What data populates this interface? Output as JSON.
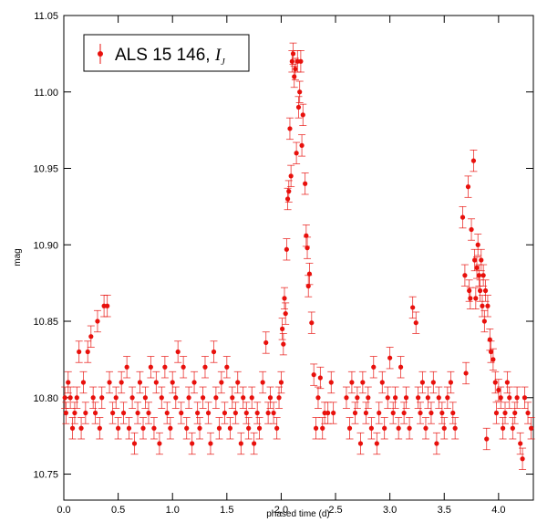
{
  "chart_data": {
    "type": "scatter",
    "xlabel": "phased time (d)",
    "ylabel": "mag",
    "xlim": [
      0,
      4.32
    ],
    "ylim": [
      10.733,
      11.05
    ],
    "xticks": [
      {
        "value": 0,
        "label": "0.0"
      },
      0.5,
      {
        "value": 1,
        "label": "1.0"
      },
      1.5,
      {
        "value": 2,
        "label": "2.0"
      },
      2.5,
      {
        "value": 3,
        "label": "3.0"
      },
      3.5,
      {
        "value": 4,
        "label": "4.0"
      }
    ],
    "yticks": [
      10.75,
      {
        "value": 10.8,
        "label": "10.80"
      },
      10.85,
      {
        "value": 10.9,
        "label": "10.90"
      },
      10.95,
      {
        "value": 11,
        "label": "11.00"
      },
      11.05
    ],
    "legend_position": "upper left",
    "series": [
      {
        "name": "ALS 15 146, ",
        "name_symbol": "I",
        "name_subscript": "J",
        "color": "#e8100c",
        "error": 0.007,
        "x": [
          0.01,
          0.02,
          0.04,
          0.06,
          0.08,
          0.1,
          0.12,
          0.14,
          0.16,
          0.18,
          0.2,
          0.22,
          0.25,
          0.27,
          0.29,
          0.31,
          0.33,
          0.35,
          0.37,
          0.4,
          0.42,
          0.45,
          0.48,
          0.5,
          0.53,
          0.55,
          0.58,
          0.6,
          0.63,
          0.65,
          0.68,
          0.7,
          0.73,
          0.75,
          0.78,
          0.8,
          0.83,
          0.85,
          0.88,
          0.9,
          0.93,
          0.95,
          0.98,
          1.0,
          1.03,
          1.05,
          1.08,
          1.1,
          1.13,
          1.15,
          1.18,
          1.2,
          1.23,
          1.25,
          1.28,
          1.3,
          1.33,
          1.35,
          1.38,
          1.4,
          1.43,
          1.45,
          1.48,
          1.5,
          1.53,
          1.55,
          1.58,
          1.6,
          1.63,
          1.65,
          1.68,
          1.7,
          1.73,
          1.75,
          1.78,
          1.8,
          1.83,
          1.86,
          1.88,
          1.9,
          1.93,
          1.96,
          1.98,
          2.0,
          2.01,
          2.02,
          2.03,
          2.04,
          2.05,
          2.06,
          2.07,
          2.08,
          2.09,
          2.1,
          2.11,
          2.12,
          2.13,
          2.14,
          2.15,
          2.16,
          2.17,
          2.18,
          2.19,
          2.2,
          2.22,
          2.23,
          2.24,
          2.25,
          2.26,
          2.28,
          2.3,
          2.32,
          2.34,
          2.36,
          2.38,
          2.4,
          2.43,
          2.46,
          2.48,
          2.6,
          2.63,
          2.65,
          2.68,
          2.7,
          2.73,
          2.75,
          2.78,
          2.8,
          2.83,
          2.85,
          2.88,
          2.9,
          2.93,
          2.95,
          2.98,
          3.0,
          3.03,
          3.05,
          3.08,
          3.1,
          3.13,
          3.15,
          3.18,
          3.21,
          3.24,
          3.26,
          3.28,
          3.3,
          3.33,
          3.35,
          3.38,
          3.4,
          3.43,
          3.45,
          3.48,
          3.5,
          3.53,
          3.56,
          3.58,
          3.6,
          3.67,
          3.69,
          3.7,
          3.72,
          3.73,
          3.74,
          3.75,
          3.77,
          3.78,
          3.79,
          3.8,
          3.81,
          3.82,
          3.83,
          3.84,
          3.85,
          3.86,
          3.87,
          3.88,
          3.89,
          3.9,
          3.92,
          3.93,
          3.95,
          3.97,
          3.98,
          4.0,
          4.02,
          4.04,
          4.06,
          4.08,
          4.1,
          4.13,
          4.15,
          4.17,
          4.2,
          4.22,
          4.24,
          4.27,
          4.3
        ],
        "values": [
          10.8,
          10.79,
          10.81,
          10.8,
          10.78,
          10.79,
          10.8,
          10.83,
          10.78,
          10.81,
          10.79,
          10.83,
          10.84,
          10.8,
          10.79,
          10.85,
          10.78,
          10.8,
          10.86,
          10.86,
          10.81,
          10.79,
          10.8,
          10.78,
          10.81,
          10.79,
          10.82,
          10.78,
          10.8,
          10.77,
          10.79,
          10.81,
          10.78,
          10.8,
          10.79,
          10.82,
          10.78,
          10.81,
          10.77,
          10.8,
          10.82,
          10.79,
          10.78,
          10.81,
          10.8,
          10.83,
          10.79,
          10.82,
          10.78,
          10.8,
          10.77,
          10.81,
          10.79,
          10.78,
          10.8,
          10.82,
          10.79,
          10.77,
          10.83,
          10.8,
          10.78,
          10.81,
          10.79,
          10.82,
          10.78,
          10.8,
          10.79,
          10.81,
          10.77,
          10.8,
          10.79,
          10.78,
          10.8,
          10.77,
          10.79,
          10.78,
          10.81,
          10.836,
          10.79,
          10.8,
          10.79,
          10.78,
          10.8,
          10.81,
          10.845,
          10.835,
          10.865,
          10.855,
          10.897,
          10.93,
          10.935,
          10.976,
          10.945,
          11.02,
          11.025,
          11.01,
          11.015,
          10.96,
          11.02,
          10.99,
          11.0,
          11.02,
          10.965,
          10.985,
          10.94,
          10.906,
          10.898,
          10.873,
          10.881,
          10.849,
          10.815,
          10.78,
          10.8,
          10.813,
          10.78,
          10.79,
          10.79,
          10.81,
          10.79,
          10.8,
          10.78,
          10.81,
          10.79,
          10.8,
          10.77,
          10.81,
          10.79,
          10.8,
          10.78,
          10.82,
          10.77,
          10.79,
          10.81,
          10.78,
          10.8,
          10.826,
          10.79,
          10.8,
          10.78,
          10.82,
          10.79,
          10.8,
          10.78,
          10.859,
          10.849,
          10.8,
          10.79,
          10.81,
          10.78,
          10.8,
          10.79,
          10.81,
          10.77,
          10.8,
          10.79,
          10.78,
          10.8,
          10.81,
          10.79,
          10.78,
          10.918,
          10.88,
          10.816,
          10.938,
          10.87,
          10.865,
          10.91,
          10.955,
          10.89,
          10.865,
          10.885,
          10.9,
          10.88,
          10.87,
          10.89,
          10.86,
          10.88,
          10.85,
          10.87,
          10.773,
          10.86,
          10.838,
          10.83,
          10.825,
          10.81,
          10.79,
          10.805,
          10.8,
          10.78,
          10.79,
          10.81,
          10.8,
          10.78,
          10.79,
          10.8,
          10.77,
          10.76,
          10.8,
          10.79,
          10.78
        ]
      }
    ]
  }
}
